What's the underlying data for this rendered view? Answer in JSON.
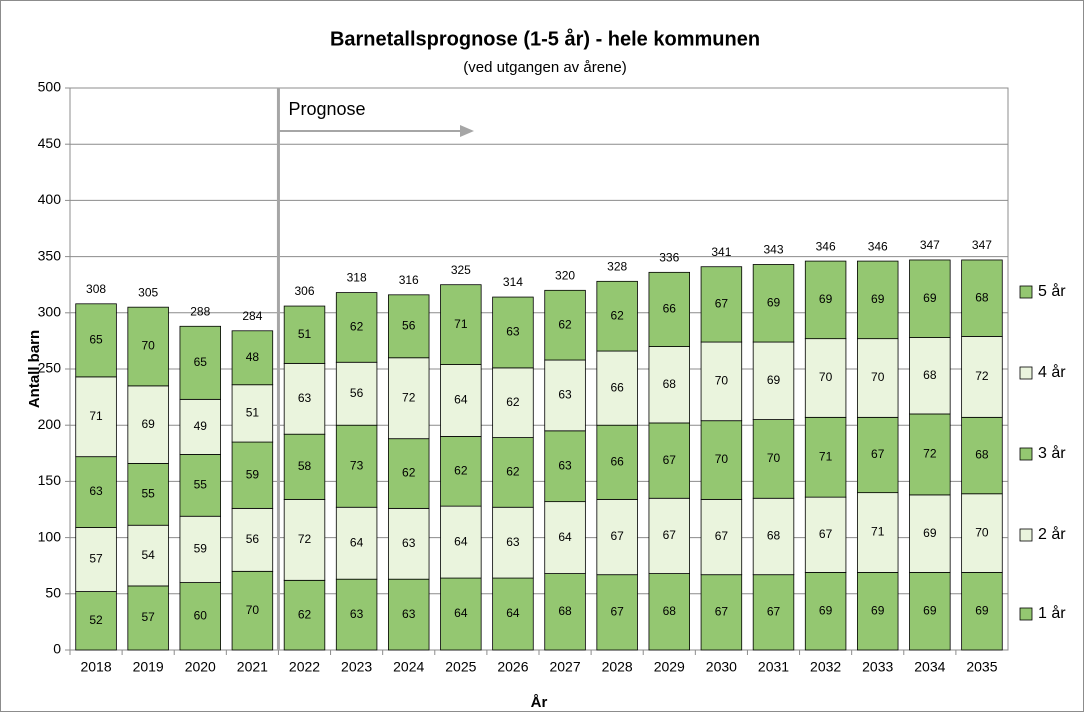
{
  "chart_data": {
    "type": "stacked_bar",
    "title": "Barnetallsprognose (1-5 år) - hele kommunen",
    "subtitle": "(ved utgangen av årene)",
    "x_label": "År",
    "y_label": "Antall barn",
    "annotation": "Prognose",
    "categories": [
      "2018",
      "2019",
      "2020",
      "2021",
      "2022",
      "2023",
      "2024",
      "2025",
      "2026",
      "2027",
      "2028",
      "2029",
      "2030",
      "2031",
      "2032",
      "2033",
      "2034",
      "2035"
    ],
    "series": [
      {
        "name": "1 år",
        "color": "#94c771",
        "values": [
          52,
          57,
          60,
          70,
          62,
          63,
          63,
          64,
          64,
          68,
          67,
          68,
          67,
          67,
          69,
          69,
          69,
          69
        ]
      },
      {
        "name": "2 år",
        "color": "#eaf4dd",
        "values": [
          57,
          54,
          59,
          56,
          72,
          64,
          63,
          64,
          63,
          64,
          67,
          67,
          67,
          68,
          67,
          71,
          69,
          70
        ]
      },
      {
        "name": "3 år",
        "color": "#94c771",
        "values": [
          63,
          55,
          55,
          59,
          58,
          73,
          62,
          62,
          62,
          63,
          66,
          67,
          70,
          70,
          71,
          67,
          72,
          68
        ]
      },
      {
        "name": "4 år",
        "color": "#eaf4dd",
        "values": [
          71,
          69,
          49,
          51,
          63,
          56,
          72,
          64,
          62,
          63,
          66,
          68,
          70,
          69,
          70,
          70,
          68,
          72
        ]
      },
      {
        "name": "5 år",
        "color": "#94c771",
        "values": [
          65,
          70,
          65,
          48,
          51,
          62,
          56,
          71,
          63,
          62,
          62,
          66,
          67,
          69,
          69,
          69,
          69,
          68
        ]
      }
    ],
    "totals": [
      308,
      305,
      288,
      284,
      306,
      318,
      316,
      325,
      314,
      320,
      328,
      336,
      341,
      343,
      346,
      346,
      347,
      347
    ],
    "ylim": [
      0,
      500
    ],
    "yticks": [
      0,
      50,
      100,
      150,
      200,
      250,
      300,
      350,
      400,
      450,
      500
    ],
    "grid": true,
    "legend": "right"
  }
}
